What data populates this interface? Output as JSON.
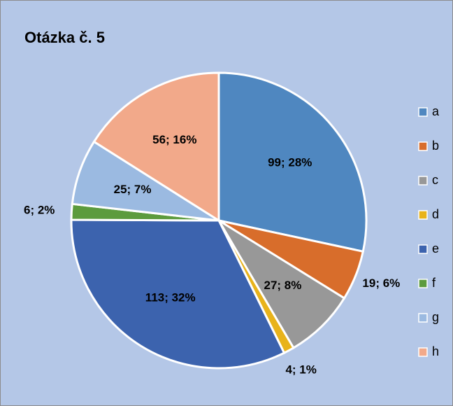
{
  "chart_data": {
    "type": "pie",
    "title": "Otázka č. 5",
    "categories": [
      "a",
      "b",
      "c",
      "d",
      "e",
      "f",
      "g",
      "h"
    ],
    "values": [
      99,
      19,
      27,
      4,
      113,
      6,
      25,
      56
    ],
    "value_labels": [
      "99; 28%",
      "19; 6%",
      "27; 8%",
      "4; 1%",
      "113; 32%",
      "6; 2%",
      "25; 7%",
      "56; 16%"
    ],
    "colors": [
      "#4f87c0",
      "#d86d2b",
      "#989898",
      "#e8b31b",
      "#3c63ae",
      "#5c9b3d",
      "#9bbae1",
      "#f2a98a"
    ],
    "legend": "right"
  }
}
